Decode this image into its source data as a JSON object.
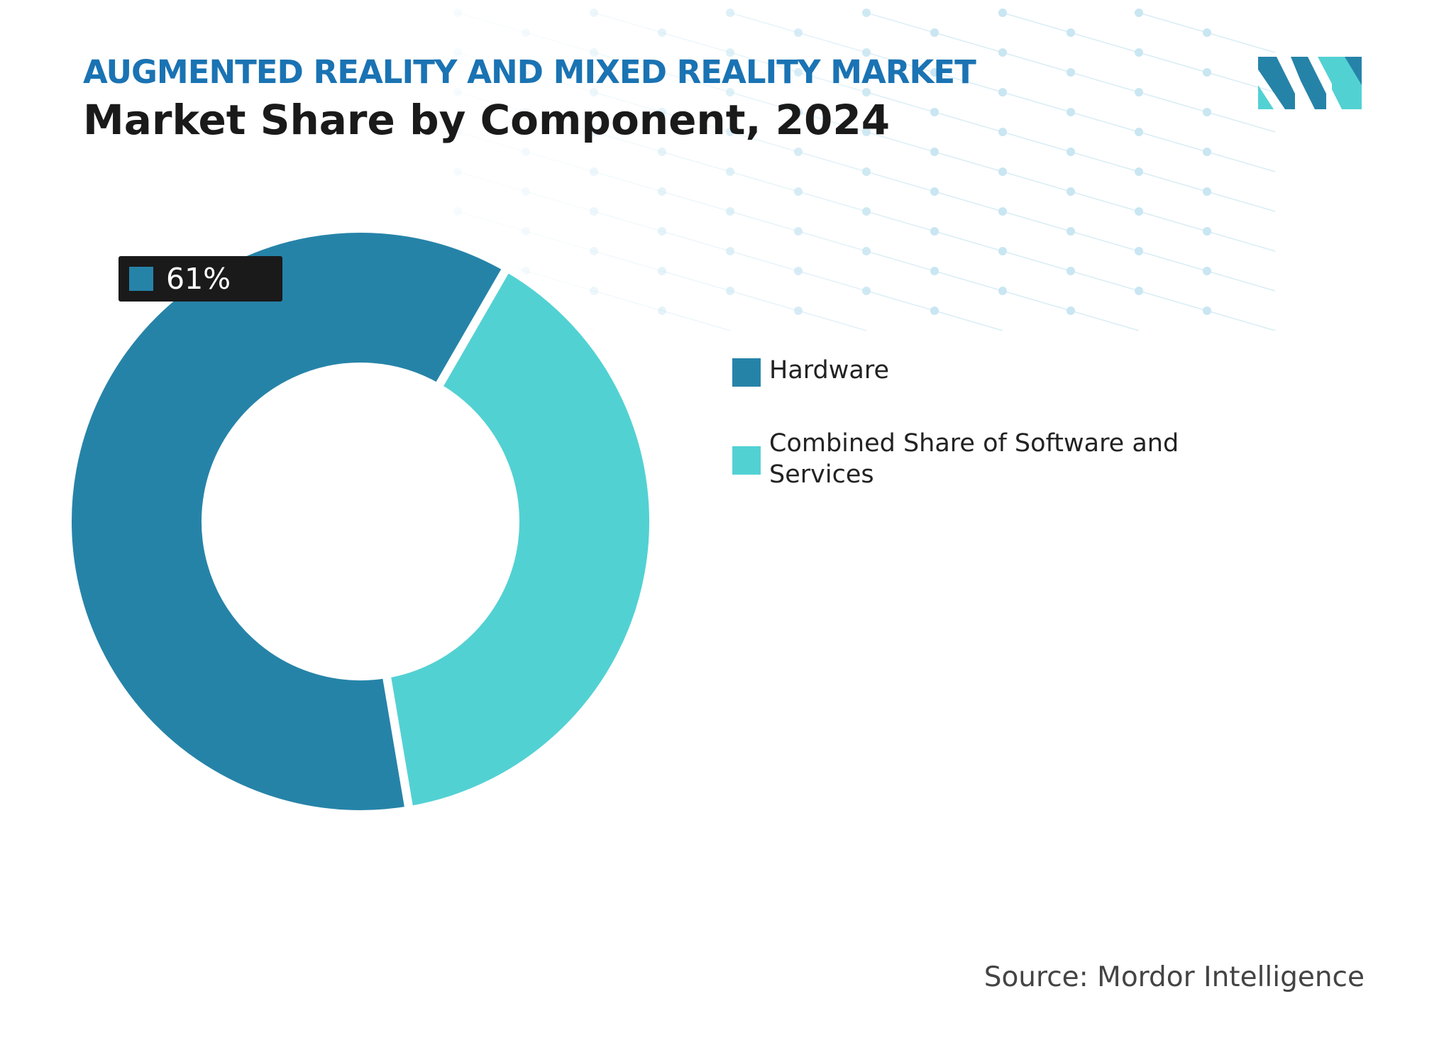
{
  "header": {
    "supertitle": "AUGMENTED REALITY AND MIXED REALITY MARKET",
    "title": "Market Share by Component, 2024"
  },
  "colors": {
    "hardware": "#2683a8",
    "software_services": "#52d1d3",
    "supertitle": "#1a73b3",
    "callout_bg": "#1a1a1a",
    "pattern": "#c9e6f2"
  },
  "logo": {
    "icon": "mordor-intelligence-logo-icon"
  },
  "chart_data": {
    "type": "pie",
    "variant": "donut",
    "title": "Market Share by Component, 2024",
    "categories": [
      "Hardware",
      "Combined Share of Software and Services"
    ],
    "values": [
      61,
      39
    ],
    "unit": "%",
    "data_labels": [
      {
        "category": "Hardware",
        "text": "61%"
      }
    ],
    "legend": {
      "placement": "right",
      "entries": [
        "Hardware",
        "Combined Share of Software and Services"
      ]
    }
  },
  "source": "Source: Mordor Intelligence"
}
